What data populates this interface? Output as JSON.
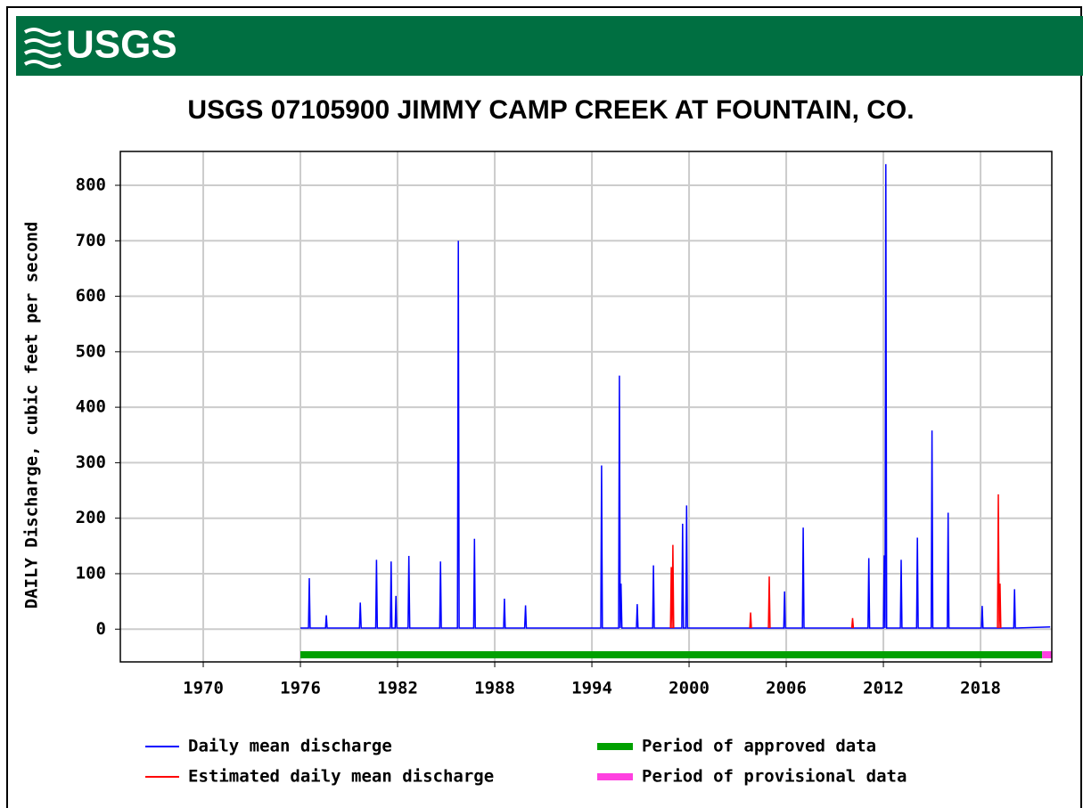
{
  "logo": "USGS",
  "chart_data": {
    "type": "line",
    "title": "USGS 07105900 JIMMY CAMP CREEK AT FOUNTAIN, CO.",
    "y_label": "DAILY Discharge, cubic feet per second",
    "xlim": [
      1964.88,
      2022.4
    ],
    "xticks": [
      1970,
      1976,
      1982,
      1988,
      1994,
      2000,
      2006,
      2012,
      2018
    ],
    "ylim": [
      -59,
      861
    ],
    "yticks": [
      0,
      100,
      200,
      300,
      400,
      500,
      600,
      700,
      800
    ],
    "grid": true,
    "series": [
      {
        "name": "Daily mean discharge",
        "color": "#0000ff",
        "x": [
          1976.0,
          1976.5,
          1976.55,
          1976.6,
          1977.55,
          1977.6,
          1977.65,
          1979.65,
          1979.7,
          1979.75,
          1980.65,
          1980.7,
          1980.75,
          1981.55,
          1981.6,
          1981.65,
          1981.85,
          1981.9,
          1981.95,
          1982.65,
          1982.7,
          1982.75,
          1984.6,
          1984.65,
          1984.7,
          1985.7,
          1985.75,
          1985.8,
          1986.7,
          1986.75,
          1986.8,
          1988.55,
          1988.6,
          1988.65,
          1989.85,
          1989.9,
          1989.95,
          1994.55,
          1994.6,
          1994.65,
          1995.65,
          1995.7,
          1995.75,
          1995.8,
          1995.85,
          1996.75,
          1996.8,
          1996.85,
          1997.75,
          1997.8,
          1997.85,
          1999.55,
          1999.6,
          1999.65,
          1999.8,
          1999.85,
          1999.9,
          2005.85,
          2005.9,
          2005.95,
          2007.0,
          2007.05,
          2007.1,
          2011.05,
          2011.1,
          2011.15,
          2012.0,
          2012.05,
          2012.1,
          2012.15,
          2012.2,
          2013.05,
          2013.1,
          2013.15,
          2014.05,
          2014.1,
          2014.15,
          2014.95,
          2015.0,
          2015.05,
          2015.95,
          2016.0,
          2016.05,
          2018.05,
          2018.1,
          2018.15,
          2020.05,
          2020.1,
          2020.15,
          2022.3
        ],
        "values": [
          2,
          2,
          92,
          2,
          2,
          25,
          2,
          2,
          48,
          2,
          2,
          125,
          2,
          2,
          122,
          2,
          2,
          60,
          2,
          2,
          132,
          2,
          2,
          122,
          2,
          2,
          700,
          2,
          2,
          163,
          2,
          2,
          55,
          2,
          2,
          43,
          2,
          2,
          295,
          2,
          2,
          457,
          2,
          82,
          2,
          2,
          45,
          2,
          2,
          115,
          2,
          2,
          190,
          2,
          2,
          223,
          2,
          2,
          68,
          2,
          2,
          183,
          2,
          2,
          128,
          2,
          2,
          133,
          2,
          838,
          2,
          2,
          125,
          2,
          2,
          165,
          2,
          2,
          358,
          2,
          2,
          210,
          2,
          2,
          42,
          2,
          2,
          72,
          2,
          4
        ]
      },
      {
        "name": "Estimated daily mean discharge",
        "color": "#ff0000",
        "x": [
          1998.85,
          1998.9,
          1998.95,
          1999.0,
          1999.05,
          2001.0,
          2003.75,
          2003.8,
          2003.85,
          2004.4,
          2004.9,
          2004.95,
          2005.0,
          2007.0,
          2010.05,
          2010.1,
          2010.15,
          2015.0,
          2019.05,
          2019.1,
          2019.15,
          2019.2,
          2019.25
        ],
        "values": [
          2,
          112,
          2,
          152,
          2,
          null,
          2,
          30,
          2,
          null,
          2,
          95,
          2,
          null,
          2,
          20,
          2,
          null,
          2,
          243,
          2,
          82,
          2
        ]
      }
    ],
    "periods": [
      {
        "name": "Period of approved data",
        "color": "#00a000",
        "start": 1976.0,
        "end": 2021.8
      },
      {
        "name": "Period of provisional data",
        "color": "#ff40e0",
        "start": 2021.8,
        "end": 2022.4
      }
    ]
  }
}
